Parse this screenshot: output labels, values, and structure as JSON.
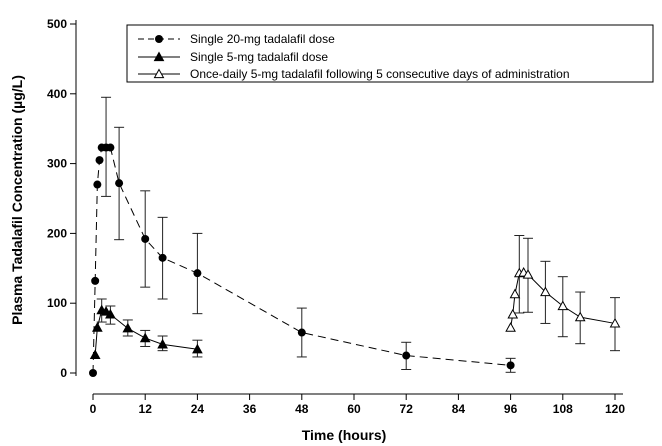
{
  "chart_data": {
    "type": "line",
    "xlabel": "Time (hours)",
    "ylabel": "Plasma Tadalafil Concentration (µg/L)",
    "xlim": [
      0,
      120
    ],
    "ylim": [
      0,
      500
    ],
    "xticks": [
      0,
      12,
      24,
      36,
      48,
      60,
      72,
      84,
      96,
      108,
      120
    ],
    "yticks": [
      0,
      100,
      200,
      300,
      400,
      500
    ],
    "grid": false,
    "legend_position": "top",
    "series": [
      {
        "name": "Single 20-mg tadalafil dose",
        "marker": "filled-circle",
        "line": "dashed",
        "x": [
          0,
          0.5,
          1,
          1.5,
          2,
          3,
          4,
          6,
          12,
          16,
          24,
          48,
          72,
          96
        ],
        "y": [
          0,
          132,
          270,
          305,
          323,
          323,
          323,
          272,
          192,
          165,
          143,
          58,
          25,
          11
        ],
        "err_low": [
          null,
          null,
          null,
          null,
          null,
          253,
          null,
          191,
          123,
          106,
          85,
          23,
          5,
          1
        ],
        "err_high": [
          null,
          null,
          null,
          null,
          null,
          395,
          null,
          352,
          261,
          223,
          200,
          93,
          44,
          21
        ]
      },
      {
        "name": "Single 5-mg tadalafil dose",
        "marker": "filled-triangle",
        "line": "solid",
        "x": [
          0.5,
          1,
          2,
          3,
          4,
          8,
          12,
          16,
          24
        ],
        "y": [
          26,
          65,
          90,
          88,
          84,
          64,
          50,
          41,
          34
        ],
        "err_low": [
          null,
          null,
          73,
          null,
          70,
          53,
          38,
          32,
          23
        ],
        "err_high": [
          null,
          null,
          106,
          null,
          96,
          76,
          61,
          53,
          47
        ]
      },
      {
        "name": "Once-daily 5-mg tadalafil following 5 consecutive days of administration",
        "marker": "open-triangle",
        "line": "solid",
        "x": [
          96,
          96.5,
          97,
          98,
          99,
          100,
          104,
          108,
          112,
          120
        ],
        "y": [
          65,
          84,
          113,
          143,
          144,
          141,
          116,
          96,
          80,
          71
        ],
        "err_low": [
          null,
          null,
          null,
          86,
          null,
          87,
          71,
          52,
          42,
          32
        ],
        "err_high": [
          null,
          null,
          null,
          197,
          null,
          193,
          160,
          138,
          116,
          108
        ]
      }
    ]
  }
}
